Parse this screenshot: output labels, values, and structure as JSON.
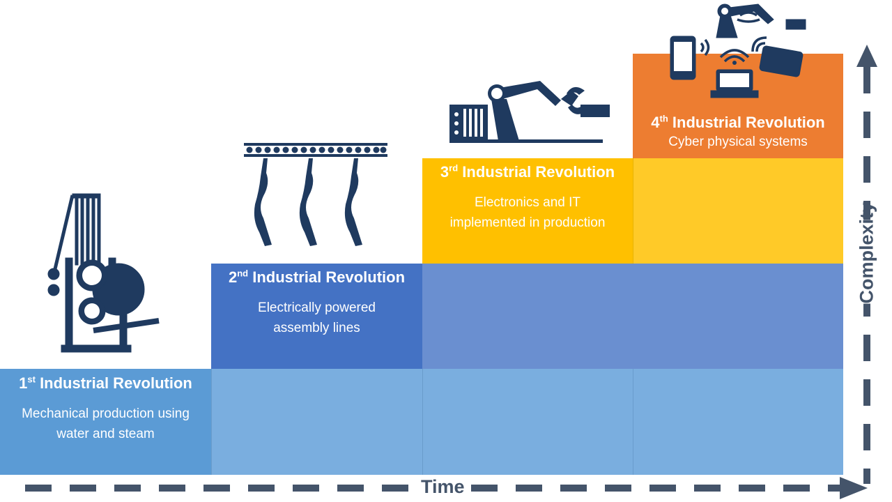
{
  "stages": [
    {
      "ordinal": "1",
      "suffix": "st",
      "title": "Industrial Revolution",
      "desc_line1": "Mechanical production using",
      "desc_line2": "water and steam",
      "icon": "loom-icon",
      "color": "#5b9bd5"
    },
    {
      "ordinal": "2",
      "suffix": "nd",
      "title": "Industrial Revolution",
      "desc_line1": "Electrically powered",
      "desc_line2": "assembly lines",
      "icon": "conveyor-icon",
      "color": "#4472c4"
    },
    {
      "ordinal": "3",
      "suffix": "rd",
      "title": "Industrial Revolution",
      "desc_line1": "Electronics and IT",
      "desc_line2": "implemented in production",
      "icon": "robot-arm-icon",
      "color": "#ffc000"
    },
    {
      "ordinal": "4",
      "suffix": "th",
      "title": "Industrial Revolution",
      "desc_line1": "Cyber physical systems",
      "desc_line2": "",
      "icon": "connected-devices-icon",
      "color": "#ed7d31"
    }
  ],
  "axes": {
    "x_label": "Time",
    "y_label": "Complexity",
    "color": "#44546a"
  },
  "icon_color": "#1f3a5f"
}
